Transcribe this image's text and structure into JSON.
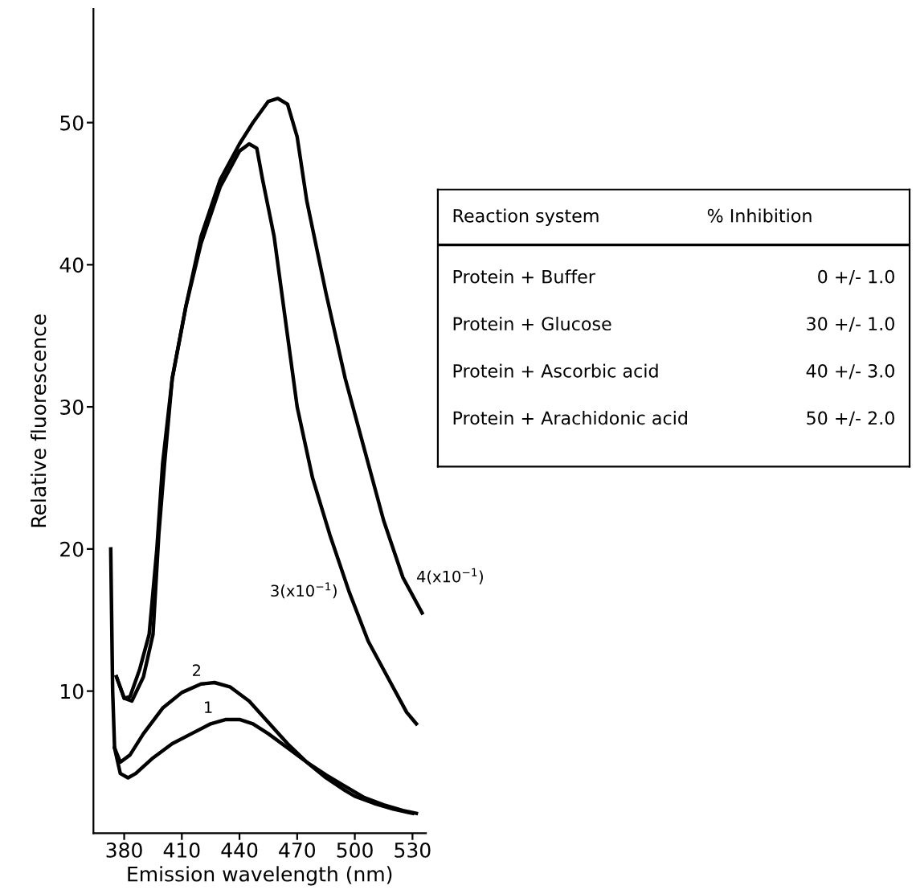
{
  "chart_data": [
    {
      "type": "line",
      "xlabel": "Emission wavelength (nm)",
      "ylabel": "Relative fluorescence",
      "xlim": [
        364,
        537
      ],
      "ylim": [
        0,
        58
      ],
      "xticks": [
        380,
        410,
        440,
        470,
        500,
        530
      ],
      "yticks": [
        10,
        20,
        30,
        40,
        50
      ],
      "grid": false,
      "legend": false,
      "marker": "none",
      "line_style": "solid",
      "series": [
        {
          "name": "1",
          "color": "#000000",
          "x": [
            375,
            378,
            382,
            386,
            395,
            405,
            415,
            425,
            433,
            440,
            447,
            455,
            465,
            475,
            485,
            495,
            505,
            515,
            525,
            532
          ],
          "values": [
            6,
            4.2,
            3.9,
            4.2,
            5.3,
            6.3,
            7,
            7.7,
            8,
            8,
            7.7,
            7,
            6,
            5,
            4.1,
            3.3,
            2.5,
            2,
            1.6,
            1.4
          ]
        },
        {
          "name": "2",
          "color": "#000000",
          "x": [
            373,
            374,
            375,
            378,
            383,
            390,
            400,
            410,
            420,
            427,
            435,
            445,
            455,
            465,
            475,
            485,
            495,
            500,
            510,
            520,
            530
          ],
          "values": [
            20,
            10,
            6,
            5,
            5.5,
            7,
            8.8,
            9.9,
            10.5,
            10.6,
            10.3,
            9.3,
            7.8,
            6.3,
            5,
            3.9,
            3,
            2.6,
            2.1,
            1.7,
            1.4
          ]
        },
        {
          "name": "3(x10$^{−1}$)",
          "color": "#000000",
          "x": [
            376,
            380,
            384,
            390,
            395,
            398,
            401,
            405,
            412,
            420,
            430,
            440,
            445,
            449,
            452,
            458,
            465,
            470,
            478,
            487,
            497,
            507,
            517,
            527,
            532
          ],
          "values": [
            11,
            9.5,
            9.3,
            11,
            14,
            21,
            26,
            32,
            37,
            41.5,
            45.5,
            48,
            48.5,
            48.2,
            46,
            42,
            35,
            30,
            25,
            21,
            17,
            13.5,
            11,
            8.5,
            7.7
          ]
        },
        {
          "name": "4(x10$^{−1}$)",
          "color": "#000000",
          "x": [
            376,
            380,
            383,
            388,
            393,
            397,
            400,
            405,
            412,
            420,
            430,
            440,
            447,
            455,
            460,
            465,
            470,
            475,
            485,
            495,
            505,
            515,
            525,
            535
          ],
          "values": [
            11,
            9.5,
            9.6,
            11.5,
            14,
            20,
            26,
            32,
            37,
            42,
            46,
            48.5,
            50,
            51.5,
            51.7,
            51.3,
            49,
            44.5,
            38,
            32,
            27,
            22,
            18,
            15.5
          ]
        }
      ]
    },
    {
      "type": "other",
      "annotations": [
        "Reaction system",
        "% Inhibition",
        "Protein + Buffer",
        "0 +/- 1.0",
        "Protein + Glucose",
        "30 +/- 1.0",
        "Protein + Ascorbic acid",
        "40 +/- 3.0",
        "Protein + Arachidonic acid",
        "50 +/- 2.0"
      ]
    }
  ]
}
